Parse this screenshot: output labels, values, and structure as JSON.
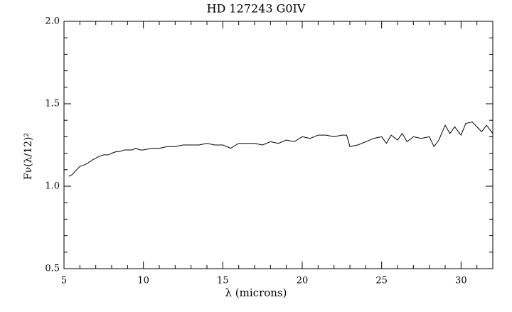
{
  "chart_data": {
    "type": "line",
    "title": "HD 127243 G0IV",
    "x_label": "λ (microns)",
    "y_label": "Fν(λ/12)²",
    "x": [
      5.3,
      5.5,
      5.8,
      6.0,
      6.3,
      6.5,
      6.8,
      7.0,
      7.2,
      7.5,
      7.8,
      8.0,
      8.3,
      8.5,
      8.8,
      9.0,
      9.3,
      9.5,
      9.8,
      10.0,
      10.5,
      11.0,
      11.5,
      12.0,
      12.5,
      13.0,
      13.5,
      14.0,
      14.5,
      15.0,
      15.5,
      16.0,
      16.5,
      17.0,
      17.5,
      18.0,
      18.5,
      19.0,
      19.5,
      20.0,
      20.5,
      21.0,
      21.5,
      22.0,
      22.5,
      22.8,
      23.0,
      23.5,
      24.0,
      24.5,
      25.0,
      25.3,
      25.6,
      26.0,
      26.3,
      26.6,
      27.0,
      27.5,
      28.0,
      28.3,
      28.6,
      29.0,
      29.3,
      29.6,
      30.0,
      30.3,
      30.7,
      31.0,
      31.3,
      31.6,
      32.0
    ],
    "series": [
      {
        "name": "HD 127243",
        "color": "#000000",
        "values": [
          1.06,
          1.07,
          1.1,
          1.12,
          1.13,
          1.14,
          1.16,
          1.17,
          1.18,
          1.19,
          1.19,
          1.2,
          1.21,
          1.21,
          1.22,
          1.22,
          1.22,
          1.23,
          1.22,
          1.22,
          1.23,
          1.23,
          1.24,
          1.24,
          1.25,
          1.25,
          1.25,
          1.26,
          1.25,
          1.25,
          1.23,
          1.26,
          1.26,
          1.26,
          1.25,
          1.27,
          1.26,
          1.28,
          1.27,
          1.3,
          1.29,
          1.31,
          1.31,
          1.3,
          1.31,
          1.31,
          1.24,
          1.25,
          1.27,
          1.29,
          1.3,
          1.26,
          1.31,
          1.28,
          1.32,
          1.27,
          1.3,
          1.29,
          1.3,
          1.24,
          1.28,
          1.37,
          1.32,
          1.36,
          1.31,
          1.38,
          1.39,
          1.36,
          1.33,
          1.37,
          1.32
        ]
      }
    ],
    "xlim": [
      5,
      32
    ],
    "ylim": [
      0.5,
      2.0
    ],
    "xticks": [
      5,
      10,
      15,
      20,
      25,
      30
    ],
    "yticks": [
      {
        "value": 0.5,
        "label": "0.5"
      },
      {
        "value": 1,
        "label": "1.0"
      },
      {
        "value": 1.5,
        "label": "1.5"
      },
      {
        "value": 2,
        "label": "2.0"
      }
    ],
    "xminorticks": [
      6,
      7,
      8,
      9,
      11,
      12,
      13,
      14,
      16,
      17,
      18,
      19,
      21,
      22,
      23,
      24,
      26,
      27,
      28,
      29,
      31
    ],
    "yminorticks": [
      0.6,
      0.7,
      0.8,
      0.9,
      1.1,
      1.2,
      1.3,
      1.4,
      1.6,
      1.7,
      1.8,
      1.9
    ]
  }
}
